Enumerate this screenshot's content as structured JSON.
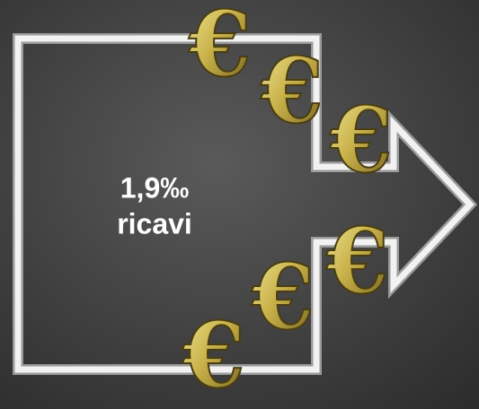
{
  "symbol": "€",
  "label": {
    "line1": "1,9‰",
    "line2": "ricavi"
  }
}
